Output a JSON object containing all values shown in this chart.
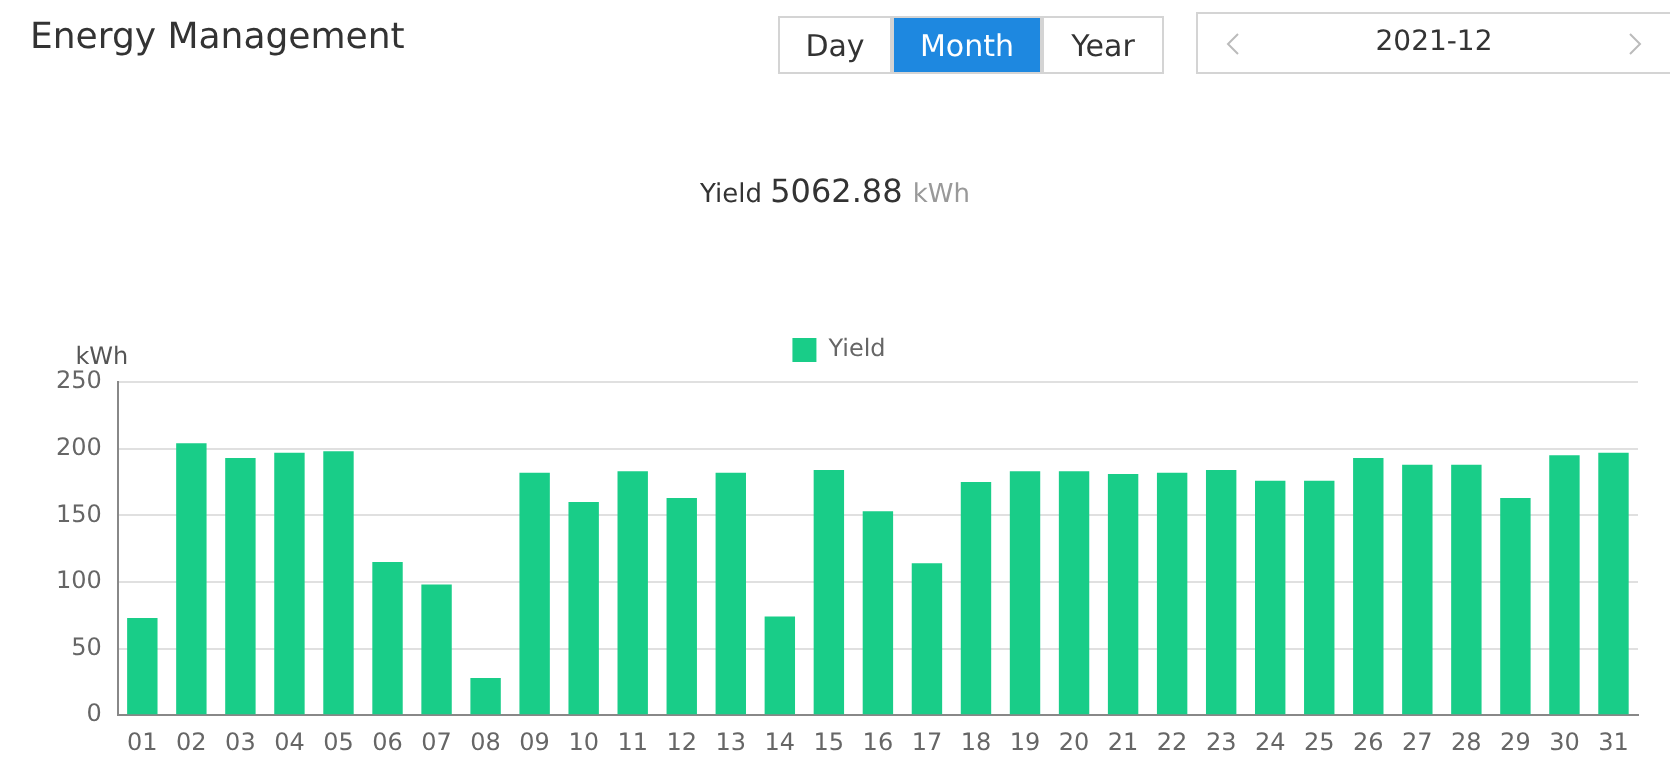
{
  "chart_data": {
    "type": "bar",
    "title": "Energy Management",
    "subtitle": "Yield 5062.88 kWh",
    "ylabel": "kWh",
    "annotations": [
      "Day",
      "Month",
      "Year",
      "2021-12"
    ],
    "categories": [
      "01",
      "02",
      "03",
      "04",
      "05",
      "06",
      "07",
      "08",
      "09",
      "10",
      "11",
      "12",
      "13",
      "14",
      "15",
      "16",
      "17",
      "18",
      "19",
      "20",
      "21",
      "22",
      "23",
      "24",
      "25",
      "26",
      "27",
      "28",
      "29",
      "30",
      "31"
    ],
    "series": [
      {
        "name": "Yield",
        "color": "#19cd88",
        "values": [
          73,
          204,
          193,
          197,
          198,
          115,
          98,
          28,
          182,
          160,
          183,
          163,
          182,
          74,
          184,
          153,
          114,
          175,
          183,
          183,
          181,
          182,
          184,
          176,
          176,
          193,
          188,
          188,
          163,
          195,
          197
        ]
      }
    ],
    "ylim": [
      0,
      250
    ],
    "yticks": [
      0,
      50,
      100,
      150,
      200,
      250
    ],
    "grid": "y",
    "legend": "top"
  }
}
